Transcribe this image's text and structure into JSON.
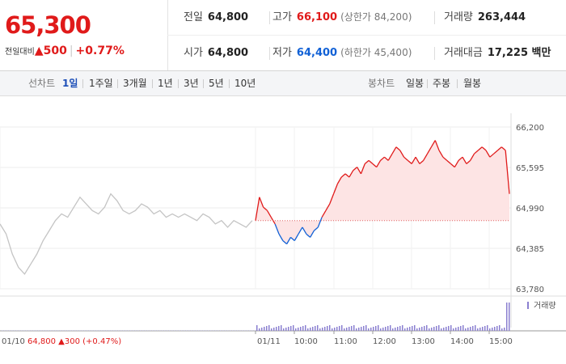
{
  "quote": {
    "price": "65,300",
    "change_label": "전일대비",
    "change_arrow": "▲",
    "change_value": "500",
    "change_pct": "+0.77%"
  },
  "stats": {
    "prev_close": {
      "label": "전일",
      "value": "64,800"
    },
    "high": {
      "label": "고가",
      "value": "66,100",
      "sub": "(상한가 84,200)"
    },
    "volume": {
      "label": "거래량",
      "value": "263,444"
    },
    "open": {
      "label": "시가",
      "value": "64,800"
    },
    "low": {
      "label": "저가",
      "value": "64,400",
      "sub": "(하한가 45,400)"
    },
    "amount": {
      "label": "거래대금",
      "value": "17,225 백만"
    }
  },
  "toolbar": {
    "line_chart_label": "선차트",
    "line_periods": [
      "1일",
      "1주일",
      "3개월",
      "1년",
      "3년",
      "5년",
      "10년"
    ],
    "selected_period": "1일",
    "candle_chart_label": "봉차트",
    "candle_periods": [
      "일봉",
      "주봉",
      "월봉"
    ]
  },
  "colors": {
    "up": "#e01a1a",
    "down": "#1161d6",
    "selected": "#1d4fb8"
  },
  "chart_data": {
    "type": "line",
    "title": "",
    "ylim": [
      63780,
      66200
    ],
    "y_ticks": [
      "66,200",
      "65,595",
      "64,990",
      "64,385",
      "63,780"
    ],
    "baseline": 64800,
    "x_ticks": [
      "01/10",
      "01/11",
      "10:00",
      "11:00",
      "12:00",
      "13:00",
      "14:00",
      "15:00"
    ],
    "volume_legend": "거래량",
    "prev_day_caption": {
      "date": "01/10",
      "close": "64,800",
      "arrow": "▲",
      "change": "300",
      "pct": "(+0.47%)"
    },
    "series": [
      {
        "values": [
          64750,
          64600,
          64300,
          64100,
          64000,
          64150,
          64300,
          64500,
          64650,
          64800,
          64900,
          64850,
          65000,
          65150,
          65050,
          64950,
          64900,
          65000,
          65200,
          65100,
          64950,
          64900,
          64950,
          65050,
          65000,
          64900,
          64950,
          64850,
          64900,
          64850,
          64900,
          64850,
          64800,
          64900,
          64850,
          64750,
          64800,
          64700,
          64800,
          64750,
          64700,
          64800
        ]
      },
      {
        "values": [
          64800,
          65150,
          65000,
          64950,
          64850,
          64750,
          64600,
          64500,
          64450,
          64550,
          64500,
          64600,
          64700,
          64600,
          64550,
          64650,
          64700,
          64850,
          64950,
          65050,
          65200,
          65350,
          65450,
          65500,
          65450,
          65550,
          65600,
          65500,
          65650,
          65700,
          65650,
          65600,
          65700,
          65750,
          65700,
          65800,
          65900,
          65850,
          65750,
          65700,
          65650,
          65750,
          65650,
          65700,
          65800,
          65900,
          66000,
          65850,
          65750,
          65700,
          65650,
          65600,
          65700,
          65750,
          65650,
          65700,
          65800,
          65850,
          65900,
          65850,
          65750,
          65800,
          65850,
          65900,
          65850,
          65200
        ]
      }
    ]
  }
}
